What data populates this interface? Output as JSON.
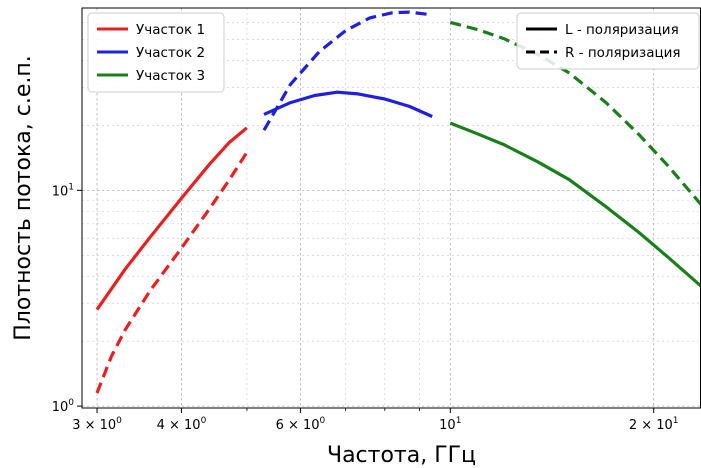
{
  "chart_data": {
    "type": "line",
    "xlabel": "Частота, ГГц",
    "ylabel": "Плотность потока, с.е.п.",
    "xscale": "log",
    "yscale": "log",
    "xlim": [
      2.85,
      23.5
    ],
    "ylim": [
      0.98,
      70
    ],
    "grid": true,
    "x_ticks": [
      {
        "value": 3,
        "base": "3 × 10",
        "exp": "0"
      },
      {
        "value": 4,
        "base": "4 × 10",
        "exp": "0"
      },
      {
        "value": 6,
        "base": "6 × 10",
        "exp": "0"
      },
      {
        "value": 10,
        "base": "10",
        "exp": "1"
      },
      {
        "value": 20,
        "base": "2 × 10",
        "exp": "1"
      }
    ],
    "y_ticks": [
      {
        "value": 1,
        "base": "10",
        "exp": "0"
      },
      {
        "value": 10,
        "base": "10",
        "exp": "1"
      }
    ],
    "series_legend": {
      "position": "upper-left",
      "items": [
        {
          "name": "Участок 1",
          "color": "#e8201f"
        },
        {
          "name": "Участок 2",
          "color": "#1f1fe0"
        },
        {
          "name": "Участок 3",
          "color": "#1a7f1a"
        }
      ]
    },
    "style_legend": {
      "position": "upper-right",
      "items": [
        {
          "name": "L - поляризация",
          "dash": "solid"
        },
        {
          "name": "R - поляризация",
          "dash": "dashed"
        }
      ]
    },
    "series": [
      {
        "segment": "Участок 1",
        "polarization": "L",
        "color": "#e8201f",
        "dash": "solid",
        "x": [
          3.0,
          3.3,
          3.6,
          4.0,
          4.4,
          4.7,
          5.0
        ],
        "y": [
          2.8,
          4.3,
          6.1,
          9.2,
          13.2,
          16.6,
          19.5
        ]
      },
      {
        "segment": "Участок 1",
        "polarization": "R",
        "color": "#e8201f",
        "dash": "dashed",
        "x": [
          3.0,
          3.15,
          3.3,
          3.6,
          4.0,
          4.4,
          4.7,
          5.0
        ],
        "y": [
          1.15,
          1.7,
          2.25,
          3.45,
          5.4,
          8.2,
          11.1,
          15.0
        ]
      },
      {
        "segment": "Участок 2",
        "polarization": "L",
        "color": "#1f1fe0",
        "dash": "solid",
        "x": [
          5.3,
          5.8,
          6.3,
          6.8,
          7.3,
          8.0,
          8.7,
          9.4
        ],
        "y": [
          22.5,
          25.5,
          27.5,
          28.5,
          28.0,
          26.5,
          24.5,
          22.0
        ]
      },
      {
        "segment": "Участок 2",
        "polarization": "R",
        "color": "#1f1fe0",
        "dash": "dashed",
        "x": [
          5.3,
          5.8,
          6.4,
          7.0,
          7.6,
          8.2,
          8.7,
          9.4
        ],
        "y": [
          19.0,
          31.0,
          44.0,
          55.0,
          63.0,
          66.5,
          67.0,
          65.0
        ]
      },
      {
        "segment": "Участок 3",
        "polarization": "L",
        "color": "#1a7f1a",
        "dash": "solid",
        "x": [
          10.0,
          11.0,
          12.0,
          13.5,
          15.0,
          17.0,
          19.0,
          21.0,
          23.5
        ],
        "y": [
          20.5,
          18.2,
          16.3,
          13.5,
          11.2,
          8.4,
          6.4,
          4.9,
          3.6
        ]
      },
      {
        "segment": "Участок 3",
        "polarization": "R",
        "color": "#1a7f1a",
        "dash": "dashed",
        "x": [
          10.0,
          11.0,
          12.0,
          13.5,
          15.0,
          17.0,
          19.0,
          21.0,
          23.5
        ],
        "y": [
          60.0,
          55.5,
          50.5,
          42.5,
          35.0,
          25.5,
          18.2,
          13.0,
          8.6
        ]
      }
    ]
  }
}
